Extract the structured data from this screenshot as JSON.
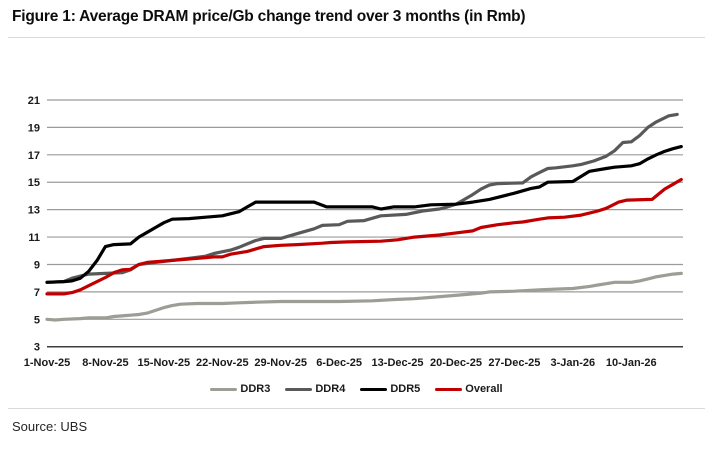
{
  "figure": {
    "title": "Figure 1: Average DRAM price/Gb change trend over 3 months (in Rmb)",
    "source": "Source: UBS"
  },
  "chart_data": {
    "type": "line",
    "title": "Average DRAM price/Gb change trend over 3 months (in Rmb)",
    "xlabel": "",
    "ylabel": "",
    "ylim": [
      3,
      21
    ],
    "y_ticks": [
      21,
      19,
      17,
      15,
      13,
      11,
      9,
      7,
      5,
      3
    ],
    "grid": "horizontal",
    "legend_position": "bottom-center",
    "x_unit": "days since 1-Nov-25",
    "x_domain_days": [
      0,
      76.2
    ],
    "x_ticks": [
      {
        "day": 0,
        "label": "1-Nov-25"
      },
      {
        "day": 7,
        "label": "8-Nov-25"
      },
      {
        "day": 14,
        "label": "15-Nov-25"
      },
      {
        "day": 21,
        "label": "22-Nov-25"
      },
      {
        "day": 28,
        "label": "29-Nov-25"
      },
      {
        "day": 35,
        "label": "6-Dec-25"
      },
      {
        "day": 42,
        "label": "13-Dec-25"
      },
      {
        "day": 49,
        "label": "20-Dec-25"
      },
      {
        "day": 56,
        "label": "27-Dec-25"
      },
      {
        "day": 63,
        "label": "3-Jan-26"
      },
      {
        "day": 70,
        "label": "10-Jan-26"
      }
    ],
    "series": [
      {
        "name": "DDR3",
        "color": "#9d9d95",
        "points": [
          [
            0,
            5.0
          ],
          [
            1,
            4.95
          ],
          [
            2,
            5.0
          ],
          [
            4,
            5.05
          ],
          [
            5,
            5.1
          ],
          [
            7,
            5.1
          ],
          [
            8,
            5.2
          ],
          [
            9,
            5.25
          ],
          [
            10,
            5.3
          ],
          [
            11,
            5.35
          ],
          [
            12,
            5.45
          ],
          [
            13,
            5.65
          ],
          [
            14,
            5.85
          ],
          [
            15,
            6.0
          ],
          [
            16,
            6.1
          ],
          [
            18,
            6.15
          ],
          [
            21,
            6.15
          ],
          [
            23,
            6.2
          ],
          [
            25,
            6.25
          ],
          [
            28,
            6.3
          ],
          [
            35,
            6.3
          ],
          [
            39,
            6.35
          ],
          [
            42,
            6.45
          ],
          [
            44,
            6.5
          ],
          [
            46,
            6.6
          ],
          [
            48,
            6.7
          ],
          [
            50,
            6.8
          ],
          [
            52,
            6.9
          ],
          [
            53,
            7.0
          ],
          [
            56,
            7.05
          ],
          [
            59,
            7.15
          ],
          [
            61,
            7.2
          ],
          [
            63,
            7.25
          ],
          [
            65,
            7.4
          ],
          [
            66,
            7.5
          ],
          [
            67,
            7.6
          ],
          [
            68,
            7.7
          ],
          [
            70,
            7.7
          ],
          [
            71,
            7.8
          ],
          [
            72,
            7.95
          ],
          [
            73,
            8.1
          ],
          [
            74,
            8.2
          ],
          [
            75,
            8.3
          ],
          [
            76,
            8.35
          ]
        ]
      },
      {
        "name": "DDR4",
        "color": "#595959",
        "points": [
          [
            0,
            7.7
          ],
          [
            2,
            7.75
          ],
          [
            3,
            8.0
          ],
          [
            4,
            8.15
          ],
          [
            5,
            8.3
          ],
          [
            7,
            8.35
          ],
          [
            9,
            8.4
          ],
          [
            10,
            8.6
          ],
          [
            11,
            9.0
          ],
          [
            13,
            9.15
          ],
          [
            15,
            9.3
          ],
          [
            17,
            9.45
          ],
          [
            19,
            9.6
          ],
          [
            20,
            9.8
          ],
          [
            22,
            10.05
          ],
          [
            23,
            10.25
          ],
          [
            24,
            10.5
          ],
          [
            25,
            10.75
          ],
          [
            26,
            10.9
          ],
          [
            28,
            10.9
          ],
          [
            30,
            11.25
          ],
          [
            32,
            11.6
          ],
          [
            33,
            11.85
          ],
          [
            35,
            11.9
          ],
          [
            36,
            12.15
          ],
          [
            38,
            12.2
          ],
          [
            40,
            12.55
          ],
          [
            43,
            12.65
          ],
          [
            45,
            12.9
          ],
          [
            47,
            13.05
          ],
          [
            48,
            13.2
          ],
          [
            49,
            13.4
          ],
          [
            51,
            14.1
          ],
          [
            52,
            14.5
          ],
          [
            53,
            14.8
          ],
          [
            54,
            14.9
          ],
          [
            57,
            14.95
          ],
          [
            58,
            15.4
          ],
          [
            59,
            15.7
          ],
          [
            60,
            16.0
          ],
          [
            61,
            16.05
          ],
          [
            63,
            16.2
          ],
          [
            64,
            16.3
          ],
          [
            65.5,
            16.55
          ],
          [
            67,
            16.9
          ],
          [
            68,
            17.3
          ],
          [
            69,
            17.9
          ],
          [
            70,
            17.95
          ],
          [
            71,
            18.4
          ],
          [
            72,
            19.0
          ],
          [
            73,
            19.4
          ],
          [
            74.5,
            19.85
          ],
          [
            75.5,
            19.95
          ]
        ]
      },
      {
        "name": "DDR5",
        "color": "#000000",
        "points": [
          [
            0,
            7.7
          ],
          [
            2,
            7.75
          ],
          [
            3,
            7.8
          ],
          [
            4,
            8.0
          ],
          [
            5,
            8.5
          ],
          [
            6,
            9.3
          ],
          [
            7,
            10.3
          ],
          [
            8,
            10.45
          ],
          [
            10,
            10.5
          ],
          [
            11,
            11.0
          ],
          [
            12,
            11.35
          ],
          [
            13,
            11.7
          ],
          [
            14,
            12.05
          ],
          [
            15,
            12.3
          ],
          [
            17,
            12.35
          ],
          [
            19,
            12.45
          ],
          [
            21,
            12.55
          ],
          [
            23,
            12.85
          ],
          [
            24,
            13.2
          ],
          [
            25,
            13.55
          ],
          [
            32,
            13.55
          ],
          [
            33.5,
            13.2
          ],
          [
            39,
            13.2
          ],
          [
            40,
            13.05
          ],
          [
            41.5,
            13.2
          ],
          [
            44,
            13.2
          ],
          [
            46,
            13.35
          ],
          [
            49,
            13.4
          ],
          [
            51,
            13.55
          ],
          [
            53,
            13.75
          ],
          [
            56,
            14.2
          ],
          [
            58,
            14.55
          ],
          [
            59,
            14.65
          ],
          [
            60,
            15.0
          ],
          [
            63,
            15.05
          ],
          [
            65,
            15.8
          ],
          [
            67,
            16.0
          ],
          [
            68,
            16.1
          ],
          [
            70,
            16.2
          ],
          [
            71,
            16.35
          ],
          [
            72,
            16.7
          ],
          [
            73,
            17.0
          ],
          [
            74,
            17.25
          ],
          [
            75,
            17.45
          ],
          [
            76,
            17.6
          ]
        ]
      },
      {
        "name": "Overall",
        "color": "#c00000",
        "points": [
          [
            0,
            6.85
          ],
          [
            2,
            6.85
          ],
          [
            3,
            6.95
          ],
          [
            4,
            7.15
          ],
          [
            5,
            7.45
          ],
          [
            6,
            7.75
          ],
          [
            7,
            8.05
          ],
          [
            8,
            8.4
          ],
          [
            9,
            8.6
          ],
          [
            10,
            8.65
          ],
          [
            11,
            9.0
          ],
          [
            12,
            9.15
          ],
          [
            13,
            9.2
          ],
          [
            15,
            9.3
          ],
          [
            17,
            9.4
          ],
          [
            19,
            9.5
          ],
          [
            20,
            9.55
          ],
          [
            21,
            9.55
          ],
          [
            22,
            9.75
          ],
          [
            24,
            9.95
          ],
          [
            26,
            10.3
          ],
          [
            28,
            10.4
          ],
          [
            30,
            10.45
          ],
          [
            33,
            10.55
          ],
          [
            34,
            10.6
          ],
          [
            36,
            10.65
          ],
          [
            40,
            10.7
          ],
          [
            42,
            10.8
          ],
          [
            44,
            11.0
          ],
          [
            47,
            11.15
          ],
          [
            49,
            11.3
          ],
          [
            51,
            11.45
          ],
          [
            52,
            11.7
          ],
          [
            54,
            11.9
          ],
          [
            56,
            12.05
          ],
          [
            57,
            12.1
          ],
          [
            59,
            12.3
          ],
          [
            60,
            12.4
          ],
          [
            62,
            12.45
          ],
          [
            64,
            12.6
          ],
          [
            65,
            12.75
          ],
          [
            66,
            12.9
          ],
          [
            67,
            13.1
          ],
          [
            68.5,
            13.55
          ],
          [
            69.5,
            13.7
          ],
          [
            72.5,
            13.75
          ],
          [
            74,
            14.5
          ],
          [
            75,
            14.85
          ],
          [
            76,
            15.2
          ]
        ]
      }
    ],
    "style": {
      "gridline_color": "#9b9b9b",
      "axis_line_color": "#3c3c3c",
      "tick_label_color": "#1a1a1a",
      "line_width": 3.2
    }
  }
}
